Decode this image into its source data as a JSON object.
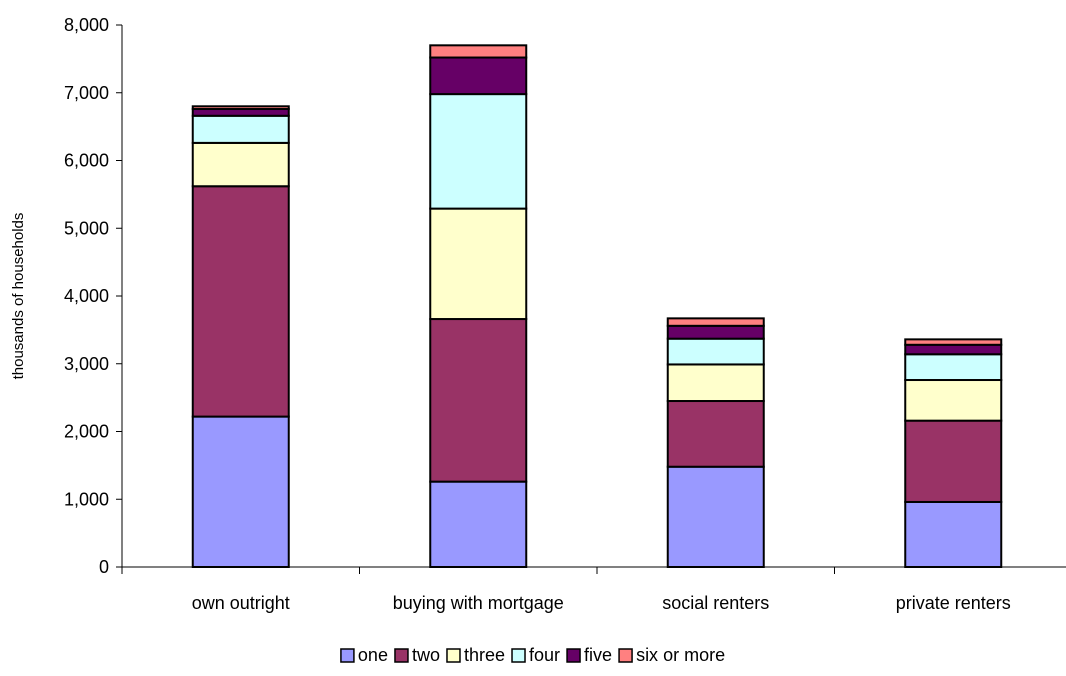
{
  "chart_data": {
    "type": "bar",
    "stacked": true,
    "title": "",
    "xlabel": "",
    "ylabel": "thousands of households",
    "ylim": [
      0,
      8000
    ],
    "yticks": [
      0,
      1000,
      2000,
      3000,
      4000,
      5000,
      6000,
      7000,
      8000
    ],
    "ytick_labels": [
      "0",
      "1,000",
      "2,000",
      "3,000",
      "4,000",
      "5,000",
      "6,000",
      "7,000",
      "8,000"
    ],
    "grid": false,
    "legend_position": "bottom",
    "categories": [
      "own outright",
      "buying with mortgage",
      "social renters",
      "private renters"
    ],
    "series": [
      {
        "name": "one",
        "color": "#9999ff",
        "values": [
          2220,
          1260,
          1480,
          960
        ]
      },
      {
        "name": "two",
        "color": "#993366",
        "values": [
          3400,
          2400,
          970,
          1200
        ]
      },
      {
        "name": "three",
        "color": "#ffffcc",
        "values": [
          640,
          1630,
          540,
          600
        ]
      },
      {
        "name": "four",
        "color": "#ccffff",
        "values": [
          400,
          1690,
          380,
          380
        ]
      },
      {
        "name": "five",
        "color": "#660066",
        "values": [
          100,
          540,
          190,
          140
        ]
      },
      {
        "name": "six or more",
        "color": "#ff8080",
        "values": [
          40,
          180,
          110,
          80
        ]
      }
    ]
  }
}
